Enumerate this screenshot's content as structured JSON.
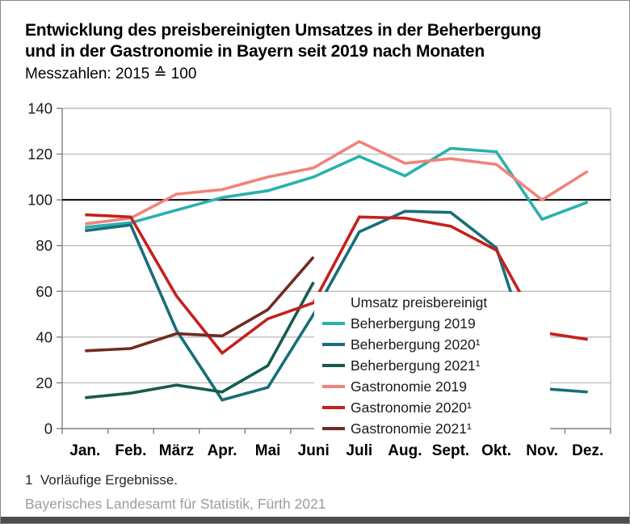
{
  "frame": {
    "border_color": "#8a8a8a",
    "bottom_bar_color": "#4e4e4e"
  },
  "header": {
    "title_line1": "Entwicklung des preisbereinigten Umsatzes in der Beherbergung",
    "title_line2": "und in der Gastronomie in Bayern seit 2019 nach Monaten",
    "subtitle": "Messzahlen: 2015 ≙ 100"
  },
  "chart_data": {
    "type": "line",
    "categories": [
      "Jan.",
      "Feb.",
      "März",
      "Apr.",
      "Mai",
      "Juni",
      "Juli",
      "Aug.",
      "Sept.",
      "Okt.",
      "Nov.",
      "Dez."
    ],
    "series": [
      {
        "name": "Beherbergung 2019",
        "color": "#2ab1ad",
        "values": [
          88,
          90,
          95.5,
          101,
          104,
          110,
          119,
          110.5,
          122.5,
          121,
          91.5,
          99
        ]
      },
      {
        "name": "Beherbergung 2020¹",
        "color": "#186e7a",
        "values": [
          86.5,
          89,
          43,
          12.5,
          18,
          50,
          86,
          95,
          94.5,
          79,
          17.5,
          16
        ]
      },
      {
        "name": "Beherbergung 2021¹",
        "color": "#175b4e",
        "values": [
          13.5,
          15.5,
          19,
          16,
          27.5,
          64
        ]
      },
      {
        "name": "Gastronomie 2019",
        "color": "#f0837a",
        "values": [
          89.5,
          92,
          102.5,
          104.5,
          110,
          114,
          125.5,
          116,
          118,
          115.5,
          100,
          112.5
        ]
      },
      {
        "name": "Gastronomie 2020¹",
        "color": "#c5201d",
        "values": [
          93.5,
          92.5,
          58,
          33,
          48,
          55,
          92.5,
          92,
          88.5,
          78,
          42,
          39
        ]
      },
      {
        "name": "Gastronomie 2021¹",
        "color": "#722a22",
        "values": [
          34,
          35,
          41.5,
          40.5,
          52,
          75
        ]
      }
    ],
    "ylim": [
      0,
      140
    ],
    "y_ticks": [
      0,
      20,
      40,
      60,
      80,
      100,
      120,
      140
    ],
    "reference_line": 100,
    "grid": "horizontal",
    "legend_title": "Umsatz preisbereinigt",
    "legend_position": "center-right"
  },
  "footnote": "1  Vorläufige Ergebnisse.",
  "source": "Bayerisches Landesamt für Statistik, Fürth 2021",
  "style": {
    "gridline_color": "#b5b5b5",
    "spine_color": "#7f7f7f",
    "reference_line_color": "#1a1a1a",
    "axis_label_color": "#1a1a1a"
  }
}
